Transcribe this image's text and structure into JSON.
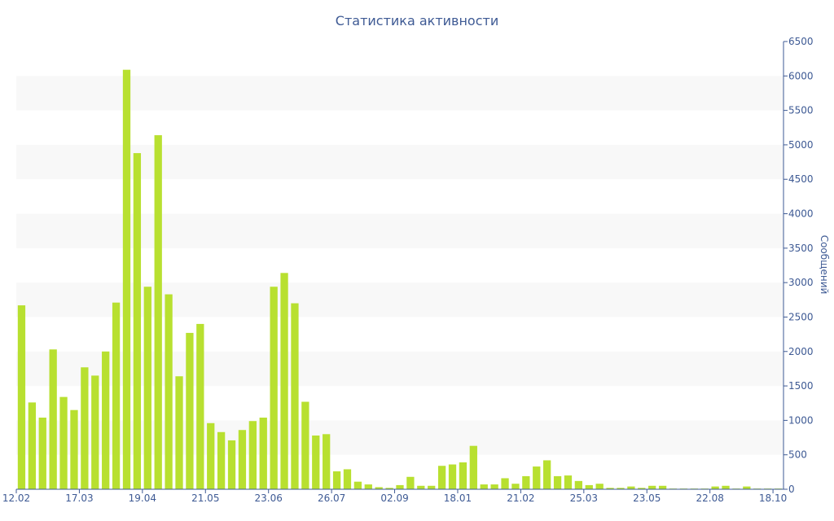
{
  "chart_data": {
    "type": "bar",
    "title": "Статистика активности",
    "ylabel": "Сообщений",
    "ylim": [
      0,
      6500
    ],
    "yticks": [
      0,
      500,
      1000,
      1500,
      2000,
      2500,
      3000,
      3500,
      4000,
      4500,
      5000,
      5500,
      6000,
      6500
    ],
    "y_axis_position": "right",
    "x_tick_labels": [
      {
        "index": 0,
        "label": "12.02"
      },
      {
        "index": 6,
        "label": "17.03"
      },
      {
        "index": 12,
        "label": "19.04"
      },
      {
        "index": 18,
        "label": "21.05"
      },
      {
        "index": 24,
        "label": "23.06"
      },
      {
        "index": 30,
        "label": "26.07"
      },
      {
        "index": 36,
        "label": "02.09"
      },
      {
        "index": 42,
        "label": "18.01"
      },
      {
        "index": 48,
        "label": "21.02"
      },
      {
        "index": 54,
        "label": "25.03"
      },
      {
        "index": 60,
        "label": "23.05"
      },
      {
        "index": 66,
        "label": "22.08"
      },
      {
        "index": 72,
        "label": "18.10"
      }
    ],
    "values": [
      2670,
      1260,
      1040,
      2030,
      1340,
      1150,
      1770,
      1650,
      2000,
      2710,
      6090,
      4880,
      2940,
      5140,
      2830,
      1640,
      2270,
      2400,
      960,
      830,
      710,
      860,
      990,
      1040,
      2940,
      3140,
      2700,
      1270,
      780,
      800,
      260,
      290,
      110,
      70,
      30,
      20,
      60,
      180,
      50,
      50,
      340,
      360,
      390,
      630,
      70,
      70,
      160,
      80,
      190,
      330,
      420,
      190,
      200,
      120,
      60,
      80,
      20,
      20,
      40,
      20,
      50,
      50,
      10,
      10,
      10,
      10,
      40,
      50,
      10,
      40,
      10,
      10,
      10
    ],
    "colors": {
      "bar": "#b8e030",
      "band": "#f8f8f8",
      "text": "#3e5a94",
      "axis": "#3e5a94"
    },
    "grid": "alternating horizontal bands"
  }
}
